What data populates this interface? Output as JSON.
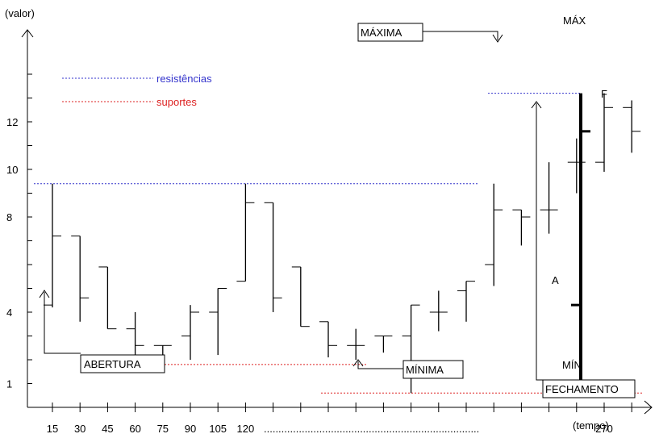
{
  "chart_data": {
    "type": "ohlc",
    "title": "",
    "xlabel": "(tempo)",
    "ylabel": "(valor)",
    "x_tick_labels": [
      "15",
      "30",
      "45",
      "60",
      "75",
      "90",
      "105",
      "120",
      "270"
    ],
    "x_dots": "..........................................................................",
    "y_ticks": [
      1,
      4,
      8,
      10,
      12
    ],
    "ylim": [
      0,
      14
    ],
    "legend": [
      {
        "label": "resistências",
        "color": "#3333cc",
        "style": "dotted"
      },
      {
        "label": "suportes",
        "color": "#dd2222",
        "style": "dotted"
      }
    ],
    "bars": [
      {
        "x": 15,
        "open": 4.3,
        "high": 9.4,
        "low": 4.2,
        "close": 7.2
      },
      {
        "x": 30,
        "open": 7.2,
        "high": 7.2,
        "low": 3.6,
        "close": 4.6
      },
      {
        "x": 45,
        "open": 5.9,
        "high": 5.9,
        "low": 3.3,
        "close": 3.3
      },
      {
        "x": 60,
        "open": 3.3,
        "high": 4.0,
        "low": 2.0,
        "close": 2.6
      },
      {
        "x": 75,
        "open": 2.6,
        "high": 2.6,
        "low": 2.0,
        "close": 2.6
      },
      {
        "x": 90,
        "open": 3.0,
        "high": 4.3,
        "low": 2.0,
        "close": 4.0
      },
      {
        "x": 105,
        "open": 4.0,
        "high": 5.0,
        "low": 2.2,
        "close": 5.0
      },
      {
        "x": 120,
        "open": 5.3,
        "high": 9.4,
        "low": 5.3,
        "close": 8.6
      },
      {
        "x": 135,
        "open": 8.6,
        "high": 8.6,
        "low": 4.0,
        "close": 4.6
      },
      {
        "x": 150,
        "open": 5.9,
        "high": 5.9,
        "low": 3.4,
        "close": 3.4
      },
      {
        "x": 165,
        "open": 3.6,
        "high": 3.6,
        "low": 2.1,
        "close": 2.6
      },
      {
        "x": 180,
        "open": 2.6,
        "high": 3.3,
        "low": 2.0,
        "close": 2.6
      },
      {
        "x": 195,
        "open": 3.0,
        "high": 3.0,
        "low": 2.3,
        "close": 3.0
      },
      {
        "x": 210,
        "open": 3.0,
        "high": 4.3,
        "low": 0.6,
        "close": 4.3
      },
      {
        "x": 225,
        "open": 4.0,
        "high": 4.9,
        "low": 3.2,
        "close": 4.0
      },
      {
        "x": 240,
        "open": 4.9,
        "high": 5.3,
        "low": 3.6,
        "close": 5.3
      },
      {
        "x": 255,
        "open": 6.0,
        "high": 9.4,
        "low": 5.1,
        "close": 8.3
      },
      {
        "x": 270,
        "open": 8.3,
        "high": 8.3,
        "low": 6.8,
        "close": 8.0
      },
      {
        "x": 285,
        "open": 8.3,
        "high": 10.3,
        "low": 7.3,
        "close": 8.3
      },
      {
        "x": 300,
        "open": 10.3,
        "high": 11.3,
        "low": 9.0,
        "close": 10.3
      },
      {
        "x": 315,
        "open": 10.3,
        "high": 13.2,
        "low": 9.9,
        "close": 12.6
      },
      {
        "x": 330,
        "open": 12.6,
        "high": 12.9,
        "low": 10.7,
        "close": 11.6
      }
    ],
    "resistance_levels": [
      9.4,
      13.2
    ],
    "support_levels": [
      1.8,
      0.6
    ],
    "reference_bar": {
      "high": 13.2,
      "low": 0.6,
      "open": 4.3,
      "close": 11.6
    },
    "annotations": {
      "abertura": "ABERTURA",
      "minima": "MÍNIMA",
      "maxima": "MÁXIMA",
      "fechamento": "FECHAMENTO",
      "max": "MÁX",
      "min": "MÍN",
      "a": "A",
      "f": "F"
    }
  }
}
